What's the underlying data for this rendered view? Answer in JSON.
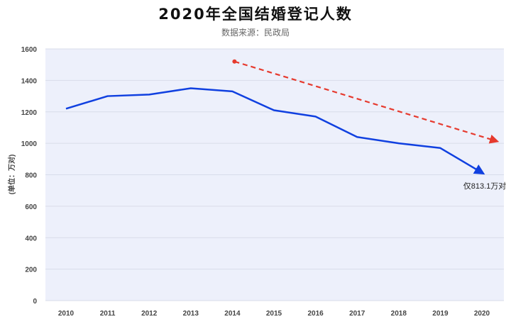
{
  "chart_data": {
    "type": "line",
    "title": "2020年全国结婚登记人数",
    "subtitle": "数据来源：民政局",
    "ylabel": "(单位：万对)",
    "xlabel": "",
    "categories": [
      "2010",
      "2011",
      "2012",
      "2013",
      "2014",
      "2015",
      "2016",
      "2017",
      "2018",
      "2019",
      "2020"
    ],
    "series": [
      {
        "values": [
          1220,
          1300,
          1310,
          1350,
          1330,
          1210,
          1170,
          1040,
          1000,
          970,
          813.1
        ],
        "color": "#1040e0"
      }
    ],
    "ylim": [
      0,
      1600
    ],
    "yticks": [
      0,
      200,
      400,
      600,
      800,
      1000,
      1200,
      1400,
      1600
    ],
    "grid": true,
    "background": "#edf0fb",
    "annotations": [
      {
        "text": "仅813.1万对",
        "x": "2020",
        "y": 813.1
      },
      {
        "type": "trend-arrow",
        "color": "#e63a2e",
        "from": {
          "x": "2014",
          "y": 1520
        },
        "to": {
          "x": "2020",
          "y": 1015
        }
      }
    ]
  }
}
